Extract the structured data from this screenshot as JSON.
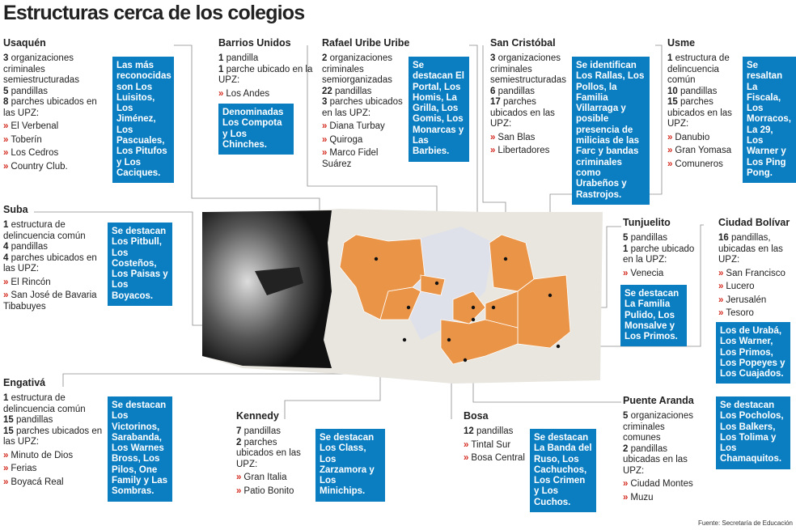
{
  "title": "Estructuras cerca de los colegios",
  "source": "Fuente: Secretaría de Educación",
  "districts": [
    {
      "name": "Usaquén",
      "stats": [
        {
          "number": 3,
          "text": "organizaciones criminales semiestructuradas"
        },
        {
          "number": 5,
          "text": "pandillas"
        },
        {
          "number": 8,
          "text": "parches ubicados en las UPZ:"
        }
      ],
      "places": [
        "El Verbenal",
        "Toberín",
        "Los Cedros",
        "Country Club."
      ],
      "note": "Las más reconocidas son Los Luisitos, Los Jiménez, Los Pascuales, Los Pitufos y Los Caciques."
    },
    {
      "name": "Barrios Unidos",
      "stats": [
        {
          "number": 1,
          "text": "pandilla"
        },
        {
          "number": 1,
          "text": "parche ubicado en la UPZ:"
        }
      ],
      "places": [
        "Los Andes"
      ],
      "note": "Denominadas Los Compota y Los Chinches."
    },
    {
      "name": "Rafael Uribe Uribe",
      "stats": [
        {
          "number": 2,
          "text": "organizaciones criminales semiorganizadas"
        },
        {
          "number": 22,
          "text": "pandillas"
        },
        {
          "number": 3,
          "text": "parches ubicados en las UPZ:"
        }
      ],
      "places": [
        "Diana Turbay",
        "Quiroga",
        "Marco Fidel Suárez"
      ],
      "note": "Se destacan El Portal, Los Homis, La Grilla, Los Gomis, Los Monarcas y Las Barbies."
    },
    {
      "name": "San Cristóbal",
      "stats": [
        {
          "number": 3,
          "text": "organizaciones criminales semiestructuradas"
        },
        {
          "number": 6,
          "text": "pandillas"
        },
        {
          "number": 17,
          "text": "parches ubicados en las UPZ:"
        }
      ],
      "places": [
        "San Blas",
        "Libertadores"
      ],
      "note": "Se identifican Los Rallas, Los Pollos, la Familia Villarraga y posible presencia de milicias de las Farc y bandas criminales como Urabeños y Rastrojos."
    },
    {
      "name": "Usme",
      "stats": [
        {
          "number": 1,
          "text": "estructura de delincuencia común"
        },
        {
          "number": 10,
          "text": "pandillas"
        },
        {
          "number": 15,
          "text": "parches ubicados en las UPZ:"
        }
      ],
      "places": [
        "Danubio",
        "Gran Yomasa",
        "Comuneros"
      ],
      "note": "Se resaltan La Fiscala, Los Morracos, La 29, Los Warner y Los Ping Pong."
    },
    {
      "name": "Suba",
      "stats": [
        {
          "number": 1,
          "text": "estructura de delincuencia común"
        },
        {
          "number": 4,
          "text": "pandillas"
        },
        {
          "number": 4,
          "text": "parches ubicados en las UPZ:"
        }
      ],
      "places": [
        "El Rincón",
        "San José de Bavaria Tibabuyes"
      ],
      "note": "Se destacan Los Pitbull, Los Costeños, Los Paisas y Los Boyacos."
    },
    {
      "name": "Engativá",
      "stats": [
        {
          "number": 1,
          "text": "estructura de delincuencia común"
        },
        {
          "number": 15,
          "text": "pandillas"
        },
        {
          "number": 15,
          "text": "parches ubicados en las UPZ:"
        }
      ],
      "places": [
        "Minuto de Dios",
        "Ferias",
        "Boyacá Real"
      ],
      "note": "Se destacan Los Victorinos, Sarabanda, Los Warnes Bross, Los Pilos, One Family y Las Sombras."
    },
    {
      "name": "Kennedy",
      "stats": [
        {
          "number": 7,
          "text": "pandillas"
        },
        {
          "number": 2,
          "text": "parches ubicados en las UPZ:"
        }
      ],
      "places": [
        "Gran Italia",
        "Patio Bonito"
      ],
      "note": "Se destacan Los Class, Los Zarzamora y Los Minichips."
    },
    {
      "name": "Bosa",
      "stats": [
        {
          "number": 12,
          "text": "pandillas"
        }
      ],
      "places": [
        "Tintal Sur",
        "Bosa Central"
      ],
      "note": "Se destacan La Banda del Ruso, Los Cachuchos, Los Crimen y Los Cuchos."
    },
    {
      "name": "Tunjuelito",
      "stats": [
        {
          "number": 5,
          "text": "pandillas"
        },
        {
          "number": 1,
          "text": "parche ubicado en la UPZ:"
        }
      ],
      "places": [
        "Venecia"
      ],
      "note": "Se destacan La Familia Pulido, Los Monsalve y Los Primos."
    },
    {
      "name": "Ciudad Bolívar",
      "stats": [
        {
          "number": 16,
          "text": "pandillas, ubicadas en las UPZ:"
        }
      ],
      "places": [
        "San Francisco",
        "Lucero",
        "Jerusalén",
        "Tesoro"
      ],
      "note": "Los de Urabá, Los Warner, Los Primos, Los Popeyes y Los Cuajados."
    },
    {
      "name": "Puente Aranda",
      "stats": [
        {
          "number": 5,
          "text": "organizaciones criminales comunes"
        },
        {
          "number": 2,
          "text": "pandillas ubicadas en las UPZ:"
        }
      ],
      "places": [
        "Ciudad Montes",
        "Muzu"
      ],
      "note": "Se destacan Los Pocholos, Los Balkers, Los Tolima y Los Chamaquitos."
    }
  ]
}
